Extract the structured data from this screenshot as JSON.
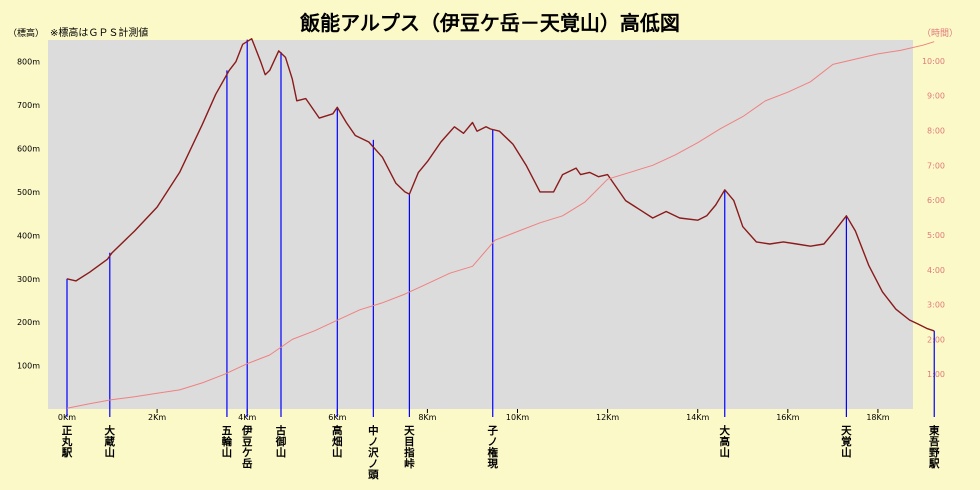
{
  "title": "飯能アルプス（伊豆ケ岳－天覚山）高低図",
  "left_axis_label": "（標高）",
  "note": "※標高はＧＰＳ計測値",
  "right_axis_label": "（時間）",
  "colors": {
    "background": "#fbf9c8",
    "plot_background": "#dcdcdc",
    "elevation_line": "#8b1a1a",
    "time_line": "#f08080",
    "marker_line": "#0000ff",
    "title_text": "#000000",
    "right_axis_text": "#e07a7a"
  },
  "chart_data": {
    "type": "line",
    "title": "飯能アルプス（伊豆ケ岳－天覚山）高低図",
    "xlim": [
      0,
      19.4
    ],
    "ylim": [
      0,
      850
    ],
    "y2lim": [
      0,
      10.6
    ],
    "x_ticks": [
      {
        "v": 0,
        "label": "0Km"
      },
      {
        "v": 2,
        "label": "2Km"
      },
      {
        "v": 4,
        "label": "4Km"
      },
      {
        "v": 6,
        "label": "6Km"
      },
      {
        "v": 8,
        "label": "8Km"
      },
      {
        "v": 10,
        "label": "10Km"
      },
      {
        "v": 12,
        "label": "12Km"
      },
      {
        "v": 14,
        "label": "14Km"
      },
      {
        "v": 16,
        "label": "16Km"
      },
      {
        "v": 18,
        "label": "18Km"
      }
    ],
    "y_ticks": [
      {
        "v": 100,
        "label": "100m"
      },
      {
        "v": 200,
        "label": "200m"
      },
      {
        "v": 300,
        "label": "300m"
      },
      {
        "v": 400,
        "label": "400m"
      },
      {
        "v": 500,
        "label": "500m"
      },
      {
        "v": 600,
        "label": "600m"
      },
      {
        "v": 700,
        "label": "700m"
      },
      {
        "v": 800,
        "label": "800m"
      }
    ],
    "y2_ticks": [
      {
        "v": 1,
        "label": "1:00"
      },
      {
        "v": 2,
        "label": "2:00"
      },
      {
        "v": 3,
        "label": "3:00"
      },
      {
        "v": 4,
        "label": "4:00"
      },
      {
        "v": 5,
        "label": "5:00"
      },
      {
        "v": 6,
        "label": "6:00"
      },
      {
        "v": 7,
        "label": "7:00"
      },
      {
        "v": 8,
        "label": "8:00"
      },
      {
        "v": 9,
        "label": "9:00"
      },
      {
        "v": 10,
        "label": "10:00"
      }
    ],
    "series": [
      {
        "color": "#8b1a1a",
        "axis": "left",
        "points": [
          [
            0.0,
            300
          ],
          [
            0.2,
            295
          ],
          [
            0.5,
            315
          ],
          [
            0.9,
            345
          ],
          [
            1.0,
            360
          ],
          [
            1.5,
            410
          ],
          [
            2.0,
            465
          ],
          [
            2.5,
            545
          ],
          [
            3.0,
            655
          ],
          [
            3.3,
            725
          ],
          [
            3.6,
            780
          ],
          [
            3.75,
            800
          ],
          [
            3.9,
            840
          ],
          [
            4.1,
            853
          ],
          [
            4.3,
            800
          ],
          [
            4.4,
            770
          ],
          [
            4.5,
            780
          ],
          [
            4.7,
            825
          ],
          [
            4.85,
            810
          ],
          [
            5.0,
            760
          ],
          [
            5.1,
            710
          ],
          [
            5.3,
            715
          ],
          [
            5.6,
            670
          ],
          [
            5.9,
            680
          ],
          [
            6.0,
            695
          ],
          [
            6.2,
            660
          ],
          [
            6.4,
            630
          ],
          [
            6.7,
            615
          ],
          [
            7.0,
            580
          ],
          [
            7.3,
            520
          ],
          [
            7.5,
            500
          ],
          [
            7.6,
            495
          ],
          [
            7.8,
            545
          ],
          [
            8.0,
            570
          ],
          [
            8.3,
            615
          ],
          [
            8.6,
            650
          ],
          [
            8.8,
            635
          ],
          [
            9.0,
            660
          ],
          [
            9.1,
            640
          ],
          [
            9.3,
            650
          ],
          [
            9.4,
            645
          ],
          [
            9.6,
            640
          ],
          [
            9.9,
            610
          ],
          [
            10.2,
            560
          ],
          [
            10.5,
            500
          ],
          [
            10.8,
            500
          ],
          [
            11.0,
            540
          ],
          [
            11.3,
            555
          ],
          [
            11.4,
            540
          ],
          [
            11.6,
            545
          ],
          [
            11.8,
            535
          ],
          [
            12.0,
            540
          ],
          [
            12.2,
            510
          ],
          [
            12.4,
            480
          ],
          [
            12.7,
            460
          ],
          [
            13.0,
            440
          ],
          [
            13.3,
            455
          ],
          [
            13.6,
            440
          ],
          [
            14.0,
            435
          ],
          [
            14.2,
            445
          ],
          [
            14.4,
            470
          ],
          [
            14.6,
            505
          ],
          [
            14.8,
            480
          ],
          [
            15.0,
            420
          ],
          [
            15.3,
            385
          ],
          [
            15.6,
            380
          ],
          [
            15.9,
            385
          ],
          [
            16.2,
            380
          ],
          [
            16.5,
            375
          ],
          [
            16.8,
            380
          ],
          [
            17.0,
            405
          ],
          [
            17.3,
            445
          ],
          [
            17.5,
            410
          ],
          [
            17.8,
            330
          ],
          [
            18.1,
            270
          ],
          [
            18.4,
            230
          ],
          [
            18.7,
            205
          ],
          [
            18.9,
            195
          ],
          [
            19.1,
            185
          ],
          [
            19.25,
            180
          ]
        ]
      },
      {
        "color": "#f08080",
        "axis": "right",
        "points": [
          [
            0.0,
            0.02
          ],
          [
            0.5,
            0.15
          ],
          [
            1.0,
            0.27
          ],
          [
            1.5,
            0.35
          ],
          [
            2.0,
            0.45
          ],
          [
            2.5,
            0.55
          ],
          [
            3.0,
            0.75
          ],
          [
            3.5,
            1.0
          ],
          [
            4.0,
            1.3
          ],
          [
            4.5,
            1.55
          ],
          [
            5.0,
            2.0
          ],
          [
            5.5,
            2.25
          ],
          [
            6.0,
            2.55
          ],
          [
            6.5,
            2.85
          ],
          [
            7.0,
            3.05
          ],
          [
            7.5,
            3.3
          ],
          [
            8.0,
            3.6
          ],
          [
            8.5,
            3.9
          ],
          [
            9.0,
            4.1
          ],
          [
            9.5,
            4.85
          ],
          [
            10.0,
            5.1
          ],
          [
            10.5,
            5.35
          ],
          [
            11.0,
            5.55
          ],
          [
            11.5,
            5.95
          ],
          [
            12.0,
            6.6
          ],
          [
            12.5,
            6.8
          ],
          [
            13.0,
            7.0
          ],
          [
            13.5,
            7.3
          ],
          [
            14.0,
            7.65
          ],
          [
            14.5,
            8.05
          ],
          [
            15.0,
            8.4
          ],
          [
            15.5,
            8.85
          ],
          [
            16.0,
            9.1
          ],
          [
            16.5,
            9.4
          ],
          [
            17.0,
            9.9
          ],
          [
            17.5,
            10.05
          ],
          [
            18.0,
            10.2
          ],
          [
            18.5,
            10.3
          ],
          [
            19.0,
            10.45
          ],
          [
            19.25,
            10.55
          ]
        ]
      }
    ],
    "markers": [
      {
        "x": 0.0,
        "elev": 300,
        "label": "正丸駅"
      },
      {
        "x": 0.95,
        "elev": 360,
        "label": "大蔵山"
      },
      {
        "x": 3.55,
        "elev": 780,
        "label": "五輪山"
      },
      {
        "x": 4.0,
        "elev": 851,
        "label": "伊豆ケ岳"
      },
      {
        "x": 4.75,
        "elev": 822,
        "label": "古御山"
      },
      {
        "x": 6.0,
        "elev": 695,
        "label": "高畑山"
      },
      {
        "x": 6.8,
        "elev": 620,
        "label": "中ノ沢ノ頭"
      },
      {
        "x": 7.6,
        "elev": 495,
        "label": "天目指峠"
      },
      {
        "x": 9.45,
        "elev": 645,
        "label": "子ノ権現"
      },
      {
        "x": 14.6,
        "elev": 505,
        "label": "大高山"
      },
      {
        "x": 17.3,
        "elev": 445,
        "label": "天覚山"
      },
      {
        "x": 19.25,
        "elev": 180,
        "label": "東吾野駅"
      }
    ]
  }
}
